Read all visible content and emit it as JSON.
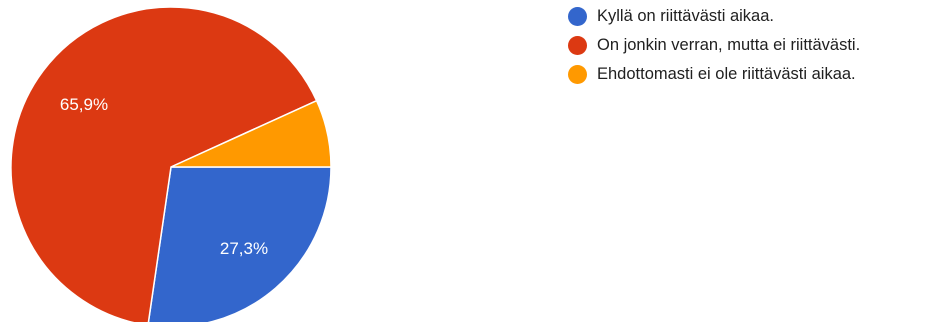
{
  "chart_data": {
    "type": "pie",
    "categories": [
      "Kyllä on riittävästi aikaa.",
      "On jonkin verran, mutta ei riittävästi.",
      "Ehdottomasti ei ole riittävästi aikaa."
    ],
    "values": [
      27.3,
      65.9,
      6.8
    ],
    "data_labels": [
      "27,3%",
      "65,9%",
      ""
    ],
    "colors": [
      "#3366cc",
      "#dc3912",
      "#ff9900"
    ],
    "title": "",
    "legend_position": "right"
  }
}
